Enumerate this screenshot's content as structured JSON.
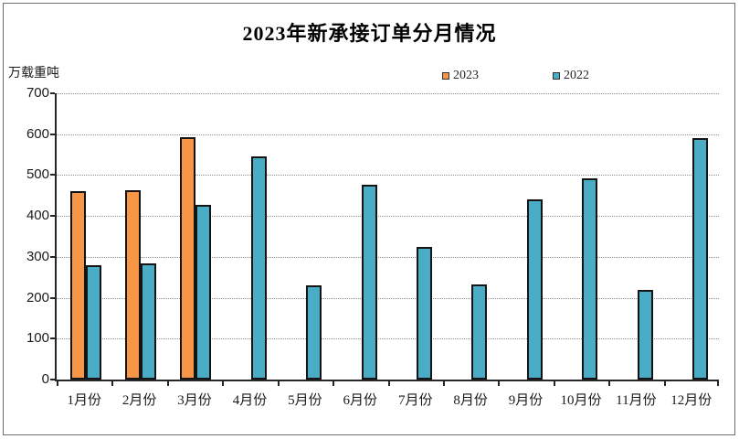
{
  "chart_data": {
    "type": "bar",
    "title": "2023年新承接订单分月情况",
    "unit_label": "万载重吨",
    "categories": [
      "1月份",
      "2月份",
      "3月份",
      "4月份",
      "5月份",
      "6月份",
      "7月份",
      "8月份",
      "9月份",
      "10月份",
      "11月份",
      "12月份"
    ],
    "series": [
      {
        "name": "2023",
        "color": "#F79646",
        "values": [
          460,
          463,
          593,
          null,
          null,
          null,
          null,
          null,
          null,
          null,
          null,
          null
        ]
      },
      {
        "name": "2022",
        "color": "#4BACC6",
        "values": [
          280,
          283,
          428,
          546,
          230,
          476,
          325,
          232,
          440,
          492,
          220,
          591
        ]
      }
    ],
    "ylim": [
      0,
      700
    ],
    "yticks": [
      0,
      100,
      200,
      300,
      400,
      500,
      600,
      700
    ],
    "ytick_step": 100,
    "grid": "horizontal-dotted",
    "legend_position": "top-center"
  }
}
